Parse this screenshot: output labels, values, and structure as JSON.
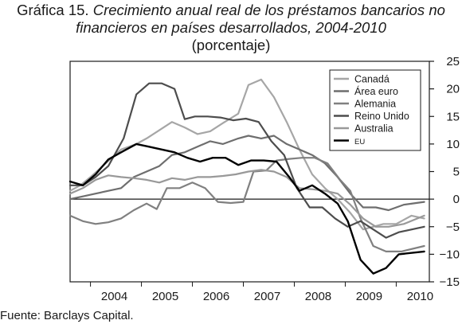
{
  "title_prefix": "Gráfica 15.",
  "title_line1_italic": "Crecimiento anual real de los préstamos bancarios no",
  "title_line2_italic": "financieros en países desarrollados, 2004-2010",
  "subtitle": "(porcentaje)",
  "source": "Fuente: Barclays Capital.",
  "chart_data": {
    "type": "line",
    "title": "Crecimiento anual real de los préstamos bancarios no financieros en países desarrollados, 2004-2010",
    "ylabel": "(porcentaje)",
    "xlim": [
      2003.6,
      2010.65
    ],
    "ylim": [
      -15,
      25
    ],
    "x_ticks": [
      2004,
      2005,
      2006,
      2007,
      2008,
      2009,
      2010
    ],
    "y_ticks": [
      25,
      20,
      15,
      10,
      5,
      0,
      -5,
      -10,
      -15
    ],
    "y_axis_side": "right",
    "legend_position": "top-right",
    "series": [
      {
        "name": "Canadá",
        "color": "#a6a6a6",
        "points": [
          [
            2003.6,
            1.5
          ],
          [
            2003.8,
            2.5
          ],
          [
            2004.0,
            4.0
          ],
          [
            2004.3,
            6.5
          ],
          [
            2004.6,
            9.0
          ],
          [
            2004.9,
            10.0
          ],
          [
            2005.1,
            11.0
          ],
          [
            2005.35,
            12.5
          ],
          [
            2005.6,
            14.0
          ],
          [
            2005.85,
            13.0
          ],
          [
            2006.1,
            11.8
          ],
          [
            2006.35,
            12.3
          ],
          [
            2006.6,
            13.8
          ],
          [
            2006.9,
            15.5
          ],
          [
            2007.1,
            20.7
          ],
          [
            2007.35,
            21.7
          ],
          [
            2007.6,
            18.5
          ],
          [
            2007.85,
            14.0
          ],
          [
            2008.1,
            9.0
          ],
          [
            2008.35,
            4.5
          ],
          [
            2008.6,
            2.0
          ],
          [
            2008.85,
            0.0
          ],
          [
            2009.1,
            -2.5
          ],
          [
            2009.35,
            -5.5
          ],
          [
            2009.55,
            -5.0
          ],
          [
            2009.75,
            -4.5
          ],
          [
            2010.0,
            -4.5
          ],
          [
            2010.3,
            -3.0
          ],
          [
            2010.55,
            -3.5
          ]
        ]
      },
      {
        "name": "Área euro",
        "color": "#6e6e6e",
        "points": [
          [
            2003.6,
            0.0
          ],
          [
            2003.85,
            0.5
          ],
          [
            2004.1,
            1.0
          ],
          [
            2004.35,
            1.5
          ],
          [
            2004.6,
            2.0
          ],
          [
            2004.85,
            4.0
          ],
          [
            2005.1,
            5.0
          ],
          [
            2005.35,
            6.0
          ],
          [
            2005.6,
            8.0
          ],
          [
            2005.85,
            8.5
          ],
          [
            2006.1,
            9.5
          ],
          [
            2006.35,
            10.5
          ],
          [
            2006.6,
            10.0
          ],
          [
            2006.9,
            11.0
          ],
          [
            2007.1,
            11.5
          ],
          [
            2007.35,
            11.0
          ],
          [
            2007.6,
            11.5
          ],
          [
            2007.85,
            10.0
          ],
          [
            2008.1,
            9.0
          ],
          [
            2008.35,
            8.0
          ],
          [
            2008.6,
            6.5
          ],
          [
            2008.85,
            4.0
          ],
          [
            2009.1,
            1.0
          ],
          [
            2009.35,
            -1.5
          ],
          [
            2009.6,
            -1.5
          ],
          [
            2009.85,
            -2.0
          ],
          [
            2010.15,
            -1.0
          ],
          [
            2010.55,
            -0.5
          ]
        ]
      },
      {
        "name": "Alemania",
        "color": "#808080",
        "points": [
          [
            2003.6,
            -3.0
          ],
          [
            2003.85,
            -4.0
          ],
          [
            2004.1,
            -4.5
          ],
          [
            2004.35,
            -4.2
          ],
          [
            2004.6,
            -3.5
          ],
          [
            2004.85,
            -2.0
          ],
          [
            2005.1,
            -0.8
          ],
          [
            2005.3,
            -1.8
          ],
          [
            2005.5,
            2.0
          ],
          [
            2005.75,
            2.0
          ],
          [
            2006.0,
            3.0
          ],
          [
            2006.25,
            2.0
          ],
          [
            2006.5,
            -0.5
          ],
          [
            2006.75,
            -0.7
          ],
          [
            2007.0,
            -0.5
          ],
          [
            2007.2,
            5.0
          ],
          [
            2007.45,
            5.2
          ],
          [
            2007.65,
            7.0
          ],
          [
            2007.9,
            7.3
          ],
          [
            2008.15,
            7.5
          ],
          [
            2008.4,
            7.5
          ],
          [
            2008.65,
            6.5
          ],
          [
            2008.9,
            3.5
          ],
          [
            2009.1,
            1.5
          ],
          [
            2009.3,
            -3.5
          ],
          [
            2009.55,
            -8.5
          ],
          [
            2009.8,
            -9.5
          ],
          [
            2010.1,
            -9.5
          ],
          [
            2010.55,
            -8.5
          ]
        ]
      },
      {
        "name": "Reino Unido",
        "color": "#4d4d4d",
        "points": [
          [
            2003.6,
            2.5
          ],
          [
            2003.85,
            2.5
          ],
          [
            2004.1,
            4.0
          ],
          [
            2004.35,
            6.0
          ],
          [
            2004.65,
            11.0
          ],
          [
            2004.9,
            19.0
          ],
          [
            2005.15,
            21.0
          ],
          [
            2005.4,
            21.0
          ],
          [
            2005.65,
            20.0
          ],
          [
            2005.85,
            14.5
          ],
          [
            2006.05,
            15.0
          ],
          [
            2006.3,
            15.0
          ],
          [
            2006.55,
            14.8
          ],
          [
            2006.8,
            14.3
          ],
          [
            2007.05,
            14.6
          ],
          [
            2007.3,
            14.0
          ],
          [
            2007.55,
            10.5
          ],
          [
            2007.8,
            8.0
          ],
          [
            2008.05,
            2.0
          ],
          [
            2008.3,
            -1.5
          ],
          [
            2008.55,
            -1.5
          ],
          [
            2008.8,
            -3.5
          ],
          [
            2009.05,
            -5.0
          ],
          [
            2009.3,
            -4.0
          ],
          [
            2009.55,
            -5.5
          ],
          [
            2009.8,
            -7.0
          ],
          [
            2010.05,
            -6.0
          ],
          [
            2010.55,
            -5.0
          ]
        ]
      },
      {
        "name": "Australia",
        "color": "#999999",
        "points": [
          [
            2003.6,
            1.0
          ],
          [
            2003.85,
            2.0
          ],
          [
            2004.1,
            3.5
          ],
          [
            2004.35,
            4.3
          ],
          [
            2004.6,
            4.0
          ],
          [
            2004.85,
            3.8
          ],
          [
            2005.1,
            3.5
          ],
          [
            2005.35,
            3.0
          ],
          [
            2005.6,
            3.8
          ],
          [
            2005.85,
            3.5
          ],
          [
            2006.1,
            4.0
          ],
          [
            2006.35,
            4.0
          ],
          [
            2006.6,
            4.2
          ],
          [
            2006.85,
            4.5
          ],
          [
            2007.1,
            5.0
          ],
          [
            2007.35,
            5.3
          ],
          [
            2007.6,
            5.0
          ],
          [
            2007.85,
            4.0
          ],
          [
            2008.1,
            2.0
          ],
          [
            2008.35,
            1.8
          ],
          [
            2008.6,
            1.5
          ],
          [
            2008.85,
            1.0
          ],
          [
            2009.1,
            -1.0
          ],
          [
            2009.35,
            -3.5
          ],
          [
            2009.6,
            -5.0
          ],
          [
            2009.85,
            -5.0
          ],
          [
            2010.15,
            -4.5
          ],
          [
            2010.55,
            -3.0
          ]
        ]
      },
      {
        "name": "EU",
        "color": "#000000",
        "points": [
          [
            2003.6,
            3.2
          ],
          [
            2003.85,
            2.5
          ],
          [
            2004.1,
            4.5
          ],
          [
            2004.35,
            7.2
          ],
          [
            2004.6,
            8.5
          ],
          [
            2004.9,
            10.0
          ],
          [
            2005.15,
            9.5
          ],
          [
            2005.4,
            9.0
          ],
          [
            2005.65,
            8.5
          ],
          [
            2005.9,
            7.5
          ],
          [
            2006.15,
            6.8
          ],
          [
            2006.4,
            7.5
          ],
          [
            2006.65,
            7.5
          ],
          [
            2006.9,
            6.2
          ],
          [
            2007.15,
            7.0
          ],
          [
            2007.4,
            7.0
          ],
          [
            2007.65,
            6.8
          ],
          [
            2007.9,
            4.0
          ],
          [
            2008.1,
            1.5
          ],
          [
            2008.35,
            2.5
          ],
          [
            2008.6,
            1.0
          ],
          [
            2008.85,
            -0.8
          ],
          [
            2009.05,
            -4.0
          ],
          [
            2009.3,
            -11.0
          ],
          [
            2009.55,
            -13.5
          ],
          [
            2009.8,
            -12.5
          ],
          [
            2010.05,
            -10.0
          ],
          [
            2010.55,
            -9.5
          ]
        ]
      }
    ]
  }
}
